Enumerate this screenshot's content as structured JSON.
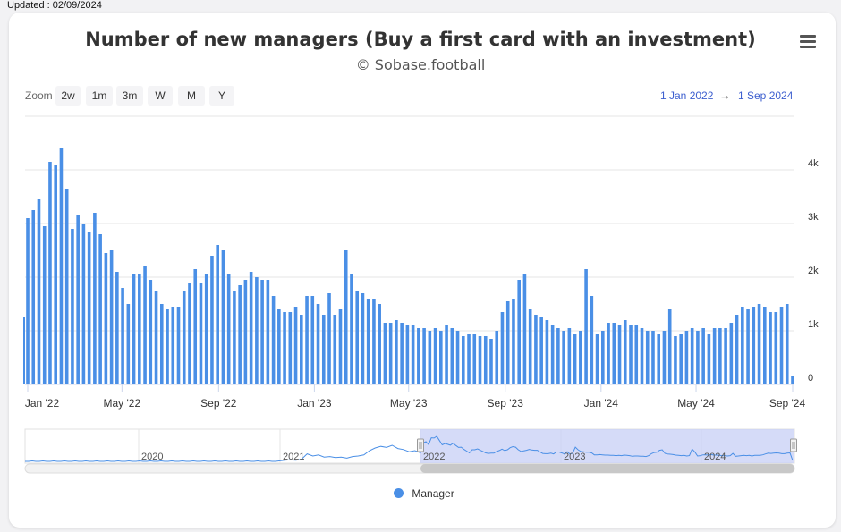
{
  "updated_text": "Updated : 02/09/2024",
  "menu_icon": "hamburger-menu-icon",
  "zoom": {
    "label": "Zoom",
    "buttons": [
      "2w",
      "1m",
      "3m",
      "W",
      "M",
      "Y"
    ]
  },
  "date_range": {
    "from": "1 Jan 2022",
    "arrow": "→",
    "to": "1 Sep 2024"
  },
  "navigator": {
    "years": [
      "2020",
      "2021",
      "2022",
      "2023",
      "2024"
    ]
  },
  "colors": {
    "series": "#4a8fe6",
    "navigator_selection": "#c7cff5",
    "range_text": "#3d5fcf"
  },
  "chart_data": {
    "type": "bar",
    "title": "Number of new managers (Buy a first card with an investment)",
    "subtitle": "© Sobase.football",
    "y_axis_side": "right",
    "ylim": [
      0,
      5000
    ],
    "yticks": [
      0,
      1000,
      2000,
      3000,
      4000
    ],
    "ytick_labels": [
      "0",
      "1k",
      "2k",
      "3k",
      "4k"
    ],
    "xlim": [
      "2022-01-01",
      "2024-09-01"
    ],
    "xticks": [
      "Jan '22",
      "May '22",
      "Sep '22",
      "Jan '23",
      "May '23",
      "Sep '23",
      "Jan '24",
      "May '24",
      "Sep '24"
    ],
    "grid": true,
    "legend_position": "bottom",
    "series": [
      {
        "name": "Manager",
        "values": [
          3100,
          3250,
          3450,
          2950,
          4150,
          4100,
          4400,
          3650,
          2900,
          3150,
          3000,
          2850,
          3200,
          2800,
          2450,
          2500,
          2100,
          1800,
          1500,
          2050,
          2050,
          2200,
          1950,
          1750,
          1500,
          1400,
          1450,
          1450,
          1750,
          1900,
          2150,
          1900,
          2050,
          2400,
          2600,
          2500,
          2050,
          1750,
          1850,
          1950,
          2100,
          2000,
          1950,
          1950,
          1650,
          1400,
          1350,
          1350,
          1450,
          1300,
          1650,
          1650,
          1500,
          1300,
          1700,
          1300,
          1400,
          2500,
          2050,
          1750,
          1700,
          1600,
          1600,
          1500,
          1150,
          1150,
          1200,
          1150,
          1100,
          1100,
          1050,
          1050,
          1000,
          1050,
          1000,
          1100,
          1050,
          1000,
          900,
          950,
          950,
          900,
          900,
          850,
          1000,
          1350,
          1550,
          1600,
          1950,
          2050,
          1400,
          1300,
          1250,
          1200,
          1100,
          1050,
          1000,
          1050,
          950,
          1000,
          2150,
          1650,
          950,
          1000,
          1150,
          1150,
          1100,
          1200,
          1100,
          1100,
          1050,
          1000,
          1000,
          950,
          1000,
          1400,
          900,
          950,
          1000,
          1050,
          1000,
          1050,
          950,
          1050,
          1050,
          1050,
          1150,
          1300,
          1450,
          1400,
          1450,
          1500,
          1450,
          1350,
          1350,
          1450,
          1500,
          150
        ]
      }
    ]
  }
}
